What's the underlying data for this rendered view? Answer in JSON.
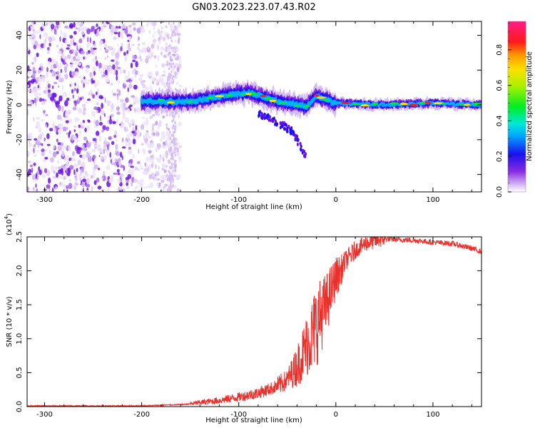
{
  "title": "GN03.2023.223.07.43.R02",
  "chart_data": [
    {
      "type": "heatmap",
      "xlabel": "Height of straight line (km)",
      "ylabel": "Frequency (Hz)",
      "xlim": [
        -318,
        150
      ],
      "ylim": [
        -50,
        48
      ],
      "xticks": [
        -300,
        -200,
        -100,
        0,
        100
      ],
      "xtick_labels": [
        "-300",
        "-200",
        "-100",
        "0",
        "100"
      ],
      "yticks": [
        -40,
        -20,
        0,
        20,
        40
      ],
      "ytick_labels": [
        "-40",
        "-20",
        "0",
        "20",
        "40"
      ],
      "colorbar": {
        "label": "Normalized spectral amplitude",
        "range": [
          0.0,
          0.96
        ],
        "ticks": [
          0.0,
          0.2,
          0.4,
          0.6,
          0.8
        ],
        "tick_labels": [
          "0.0",
          "0.2",
          "0.4",
          "0.6",
          "0.8"
        ],
        "colormap": "rainbow (white, purple, blue, cyan, green, yellow, orange, red, magenta)"
      },
      "features": {
        "noise_region_x": [
          -318,
          -160
        ],
        "signal_band_x": [
          -200,
          150
        ],
        "signal_center_freq_hz": [
          [
            -200,
            2
          ],
          [
            -150,
            2
          ],
          [
            -120,
            5
          ],
          [
            -90,
            7
          ],
          [
            -60,
            2
          ],
          [
            -30,
            -1
          ],
          [
            -20,
            5
          ],
          [
            0,
            1
          ],
          [
            50,
            0
          ],
          [
            100,
            1
          ],
          [
            150,
            0
          ]
        ],
        "descending_branch": [
          [
            -80,
            -5
          ],
          [
            -60,
            -10
          ],
          [
            -45,
            -15
          ],
          [
            -35,
            -25
          ],
          [
            -30,
            -30
          ]
        ]
      },
      "grid": false
    },
    {
      "type": "line",
      "xlabel": "Height of straight line (km)",
      "ylabel": "SNR (10 * v/v)",
      "y_scale_label": "(x10",
      "y_scale_exponent": "4",
      "xlim": [
        -318,
        150
      ],
      "ylim": [
        0,
        2.5
      ],
      "xticks": [
        -300,
        -200,
        -100,
        0,
        100
      ],
      "xtick_labels": [
        "-300",
        "-200",
        "-100",
        "0",
        "100"
      ],
      "yticks": [
        0.0,
        0.5,
        1.0,
        1.5,
        2.0,
        2.5
      ],
      "ytick_labels": [
        "0.0",
        "0.5",
        "1.0",
        "1.5",
        "2.0",
        "2.5"
      ],
      "series": [
        {
          "color": "#e8312c",
          "x": [
            -318,
            -300,
            -250,
            -200,
            -180,
            -160,
            -150,
            -140,
            -120,
            -100,
            -80,
            -60,
            -50,
            -40,
            -30,
            -20,
            -10,
            -5,
            0,
            5,
            10,
            20,
            30,
            40,
            50,
            60,
            80,
            100,
            120,
            140,
            150
          ],
          "y": [
            0.01,
            0.01,
            0.01,
            0.01,
            0.02,
            0.03,
            0.04,
            0.06,
            0.09,
            0.14,
            0.2,
            0.3,
            0.4,
            0.6,
            0.9,
            1.2,
            1.5,
            1.7,
            1.9,
            2.0,
            2.15,
            2.3,
            2.4,
            2.44,
            2.47,
            2.46,
            2.45,
            2.42,
            2.4,
            2.33,
            2.28
          ]
        }
      ],
      "grid": false
    }
  ]
}
